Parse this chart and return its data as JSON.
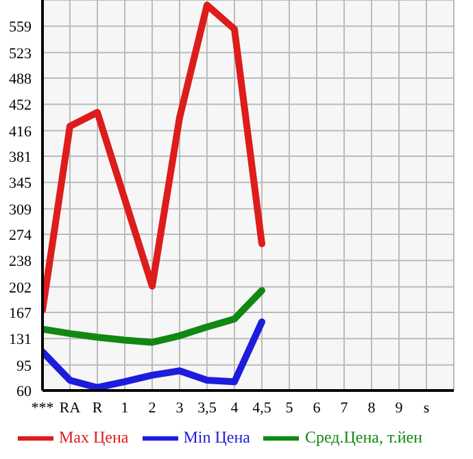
{
  "chart_data": {
    "type": "line",
    "categories": [
      "***",
      "RA",
      "R",
      "1",
      "2",
      "3",
      "3,5",
      "4",
      "4,5",
      "5",
      "6",
      "7",
      "8",
      "9",
      "s",
      null
    ],
    "series": [
      {
        "name": "Max Цена",
        "color": "#dd1c1c",
        "values": [
          170,
          422,
          441,
          322,
          203,
          434,
          588,
          555,
          261,
          null,
          null,
          null,
          null,
          null,
          null,
          null
        ]
      },
      {
        "name": "Min Цена",
        "color": "#1c1cdd",
        "values": [
          113,
          74,
          64,
          72,
          81,
          87,
          74,
          72,
          154,
          null,
          null,
          null,
          null,
          null,
          null,
          null
        ]
      },
      {
        "name": "Сред.Цена, т.йен",
        "color": "#118811",
        "values": [
          144,
          138,
          133,
          129,
          126,
          135,
          147,
          158,
          197,
          null,
          null,
          null,
          null,
          null,
          null,
          null
        ]
      }
    ],
    "ylim": [
      60,
      595
    ],
    "yticks": [
      60,
      95,
      131,
      167,
      202,
      238,
      274,
      309,
      345,
      381,
      416,
      452,
      488,
      523,
      559
    ],
    "grid": true,
    "legend": "bottom",
    "marker": "none",
    "line_style": "solid"
  }
}
